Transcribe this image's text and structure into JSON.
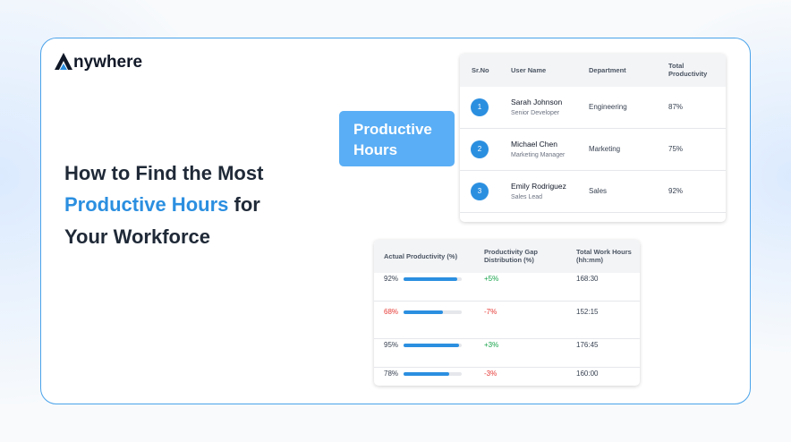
{
  "logo": "nywhere",
  "heading": {
    "line1": "How to Find the Most",
    "highlight": "Productive Hours",
    "line2_rest": "for",
    "line3": "Your Workforce"
  },
  "badge": {
    "line1": "Productive",
    "line2": "Hours"
  },
  "users_table": {
    "headers": [
      "Sr.No",
      "User Name",
      "Department",
      "Total Productivity"
    ],
    "rows": [
      {
        "no": "1",
        "name": "Sarah Johnson",
        "role": "Senior Developer",
        "department": "Engineering",
        "total": "87%"
      },
      {
        "no": "2",
        "name": "Michael Chen",
        "role": "Marketing Manager",
        "department": "Marketing",
        "total": "75%"
      },
      {
        "no": "3",
        "name": "Emily Rodriguez",
        "role": "Sales Lead",
        "department": "Sales",
        "total": "92%"
      }
    ]
  },
  "stats_table": {
    "headers": [
      "Actual Productivity (%)",
      "Productivity Gap Distribution (%)",
      "Total Work Hours (hh:mm)"
    ],
    "bar_max": 100,
    "rows": [
      {
        "actual": {
          "value": 92,
          "label": "92%",
          "color": "#374151"
        },
        "gap": {
          "label": "+5%",
          "color": "#16a34a"
        },
        "hours": "168:30"
      },
      {
        "actual": {
          "value": 68,
          "label": "68%",
          "color": "#e53935"
        },
        "gap": {
          "label": "-7%",
          "color": "#e53935"
        },
        "hours": "152:15"
      },
      {
        "actual": {
          "value": 95,
          "label": "95%",
          "color": "#374151"
        },
        "gap": {
          "label": "+3%",
          "color": "#16a34a"
        },
        "hours": "176:45"
      },
      {
        "actual": {
          "value": 78,
          "label": "78%",
          "color": "#374151"
        },
        "gap": {
          "label": "-3%",
          "color": "#e53935"
        },
        "hours": "160:00"
      }
    ]
  }
}
